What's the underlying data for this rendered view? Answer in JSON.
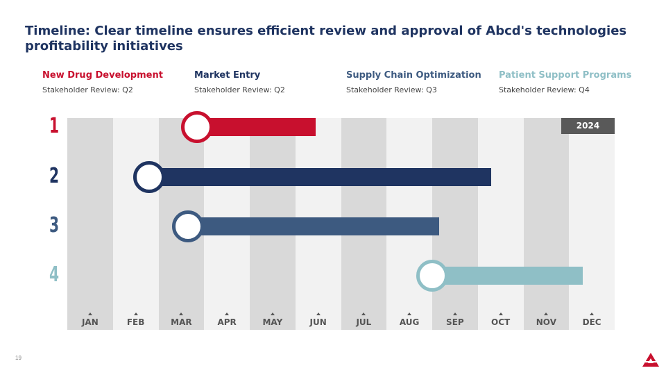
{
  "title": "Timeline: Clear timeline ensures efficient review and approval of Abcd's technologies profitability initiatives",
  "legend": [
    {
      "name": "New Drug Development",
      "review": "Stakeholder Review: Q2",
      "color": "#c8102e"
    },
    {
      "name": "Market Entry",
      "review": "Stakeholder Review: Q2",
      "color": "#1f3461"
    },
    {
      "name": "Supply Chain Optimization",
      "review": "Stakeholder Review: Q3",
      "color": "#3d5a80"
    },
    {
      "name": "Patient Support Programs",
      "review": "Stakeholder Review: Q4",
      "color": "#8fbfc6"
    }
  ],
  "year": "2024",
  "months": [
    "JAN",
    "FEB",
    "MAR",
    "APR",
    "MAY",
    "JUN",
    "JUL",
    "AUG",
    "SEP",
    "OCT",
    "NOV",
    "DEC"
  ],
  "rows": [
    {
      "label": "1",
      "start": 2.85,
      "end": 5.45,
      "color": "#c8102e"
    },
    {
      "label": "2",
      "start": 1.8,
      "end": 9.3,
      "color": "#1f3461"
    },
    {
      "label": "3",
      "start": 2.65,
      "end": 8.15,
      "color": "#3d5a80"
    },
    {
      "label": "4",
      "start": 8.0,
      "end": 11.3,
      "color": "#8fbfc6"
    }
  ],
  "page_number": "19"
}
